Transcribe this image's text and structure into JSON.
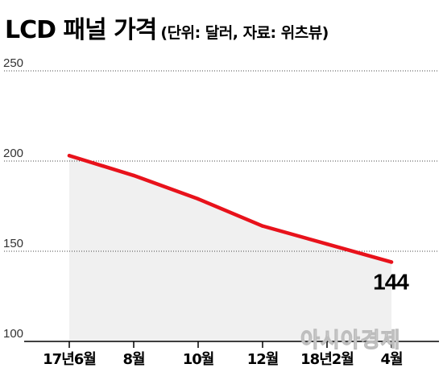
{
  "chart_data": {
    "type": "line",
    "title": "LCD 패널 가격",
    "subtitle": "(단위: 달러, 자료: 위츠뷰)",
    "categories": [
      "17년6월",
      "8월",
      "10월",
      "12월",
      "18년2월",
      "4월"
    ],
    "series": [
      {
        "values": [
          203,
          192,
          179,
          164,
          154,
          144
        ]
      }
    ],
    "yticks": [
      100,
      150,
      200,
      250
    ],
    "ylim": [
      100,
      250
    ],
    "data_labels": [
      {
        "index": 5,
        "text": "144"
      }
    ],
    "colors": {
      "line": "#e8121b",
      "area": "#f0f0f0",
      "grid": "#444444"
    }
  },
  "watermark": "아시아경제"
}
